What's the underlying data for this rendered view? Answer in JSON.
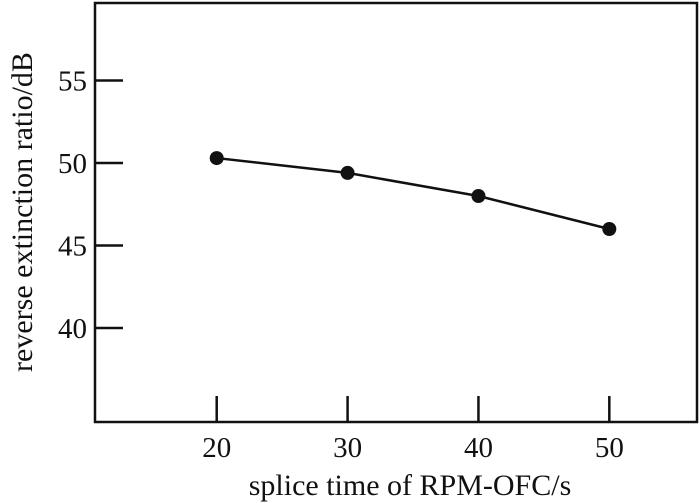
{
  "chart_data": {
    "type": "line",
    "title": "",
    "xlabel": "splice time of RPM-OFC/s",
    "ylabel": "reverse extinction ratio/dB",
    "xlim": [
      10.7,
      56.7
    ],
    "ylim": [
      34.3,
      59.7
    ],
    "xticks": [
      20,
      30,
      40,
      50
    ],
    "yticks": [
      40,
      45,
      50,
      55
    ],
    "xtick_labels": [
      "20",
      "30",
      "40",
      "50"
    ],
    "ytick_labels": [
      "40",
      "45",
      "50",
      "55"
    ],
    "grid": false,
    "legend": "none",
    "series": [
      {
        "name": "reverse extinction ratio",
        "x": [
          20,
          30,
          40,
          50
        ],
        "values": [
          50.3,
          49.4,
          48.0,
          46.0
        ],
        "color": "#111111",
        "marker": "circle"
      }
    ]
  }
}
